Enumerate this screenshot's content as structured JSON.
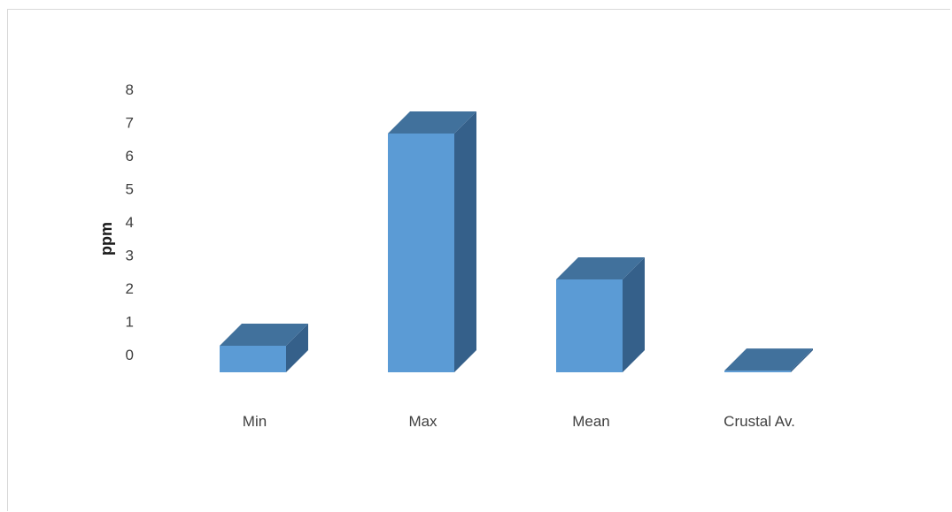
{
  "chart_data": {
    "type": "bar",
    "style": "3d-column",
    "categories": [
      "Min",
      "Max",
      "Mean",
      "Crustal Av."
    ],
    "values": [
      0.8,
      7.2,
      2.8,
      0.05
    ],
    "ylabel": "ppm",
    "xlabel": "",
    "title": "",
    "ylim": [
      0,
      8
    ],
    "yticks": [
      0,
      1,
      2,
      3,
      4,
      5,
      6,
      7,
      8
    ],
    "grid": false,
    "legend": "none",
    "colors": {
      "front": "#5b9bd5",
      "top": "#41719c",
      "side": "#35608a"
    }
  }
}
